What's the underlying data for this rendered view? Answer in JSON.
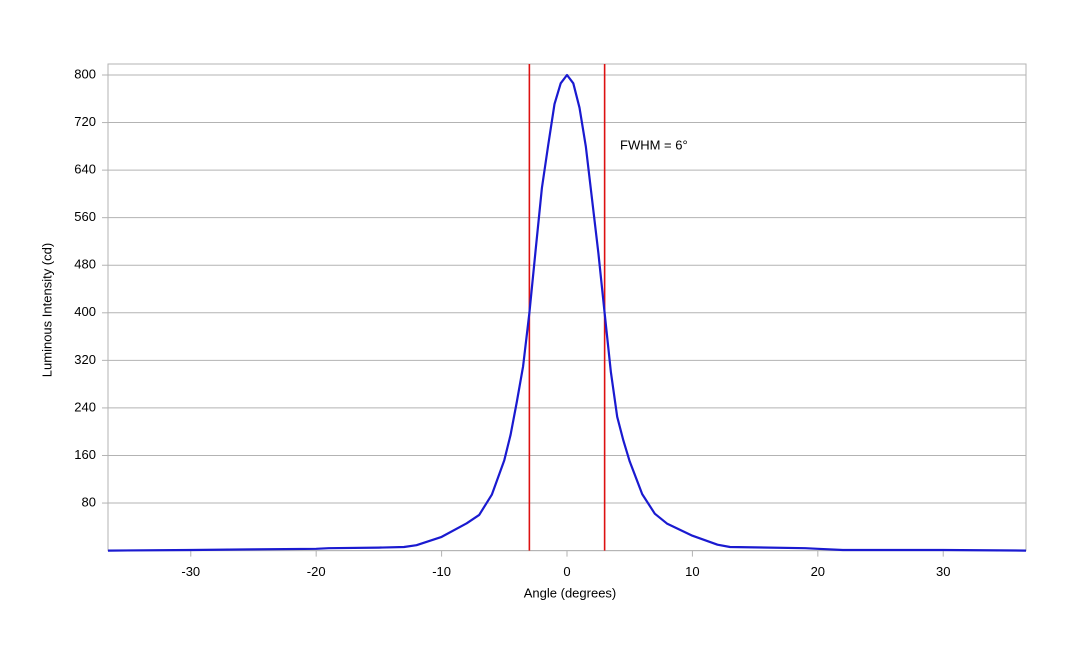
{
  "chart_data": {
    "type": "line",
    "x_label": "Angle (degrees)",
    "y_label": "Luminous Intensity (cd)",
    "annotation": "FWHM = 6°",
    "x": [
      -36.6,
      -30,
      -25,
      -20,
      -19,
      -15,
      -13,
      -12,
      -10,
      -8,
      -7,
      -6,
      -5,
      -4.5,
      -4,
      -3.5,
      -3,
      -2.5,
      -2,
      -1.5,
      -1,
      -0.5,
      0,
      0.5,
      1,
      1.5,
      2,
      2.5,
      3,
      3.5,
      4,
      4.5,
      5,
      6,
      7,
      8,
      10,
      12,
      13,
      19,
      20,
      22,
      30,
      36.6
    ],
    "series": [
      {
        "color": "#1a1ad0",
        "values": [
          0,
          1,
          2,
          3,
          4,
          5,
          6,
          9,
          23,
          46,
          60,
          94,
          152,
          195,
          250,
          310,
          400,
          505,
          610,
          682,
          751,
          786,
          800,
          786,
          745,
          680,
          590,
          500,
          400,
          300,
          225,
          185,
          150,
          95,
          62,
          45,
          25,
          10,
          6,
          4,
          3,
          1,
          1,
          0
        ]
      }
    ],
    "vlines": [
      -3,
      3
    ],
    "vline_color": "#dd1111",
    "xlim": [
      -36.6,
      36.6
    ],
    "xticks": [
      -30,
      -20,
      -10,
      0,
      10,
      20,
      30
    ],
    "ylim": [
      0,
      818.5
    ],
    "yticks": [
      80,
      160,
      240,
      320,
      400,
      480,
      560,
      640,
      720,
      800
    ],
    "grid": true
  }
}
